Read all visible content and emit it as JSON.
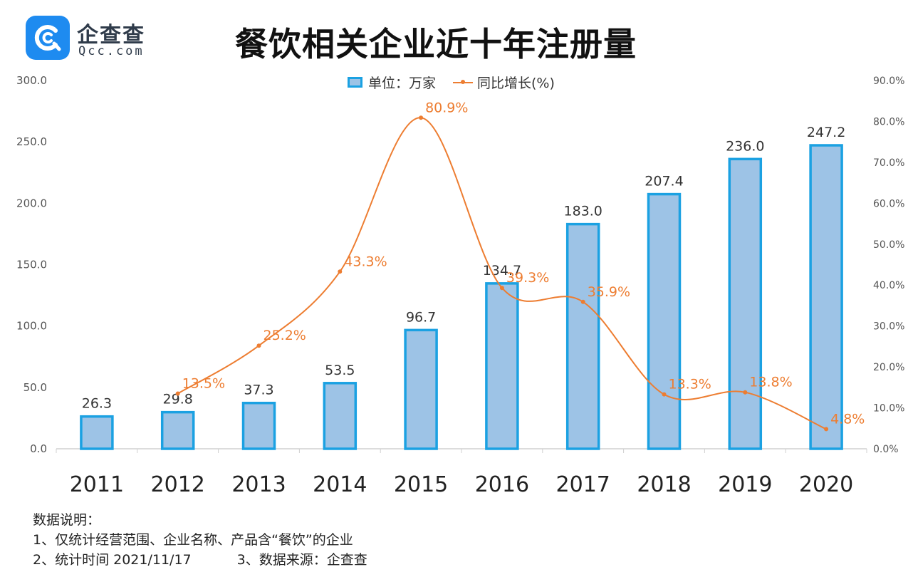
{
  "logo": {
    "name": "企查查",
    "domain": "Qcc.com"
  },
  "colors": {
    "bar_fill": "#9dc3e6",
    "bar_border": "#1ba1e2",
    "line": "#ed7d31",
    "bar_label": "#333333",
    "brand": "#1e8bf0"
  },
  "chart_data": {
    "type": "bar",
    "title": "餐饮相关企业近十年注册量",
    "categories": [
      "2011",
      "2012",
      "2013",
      "2014",
      "2015",
      "2016",
      "2017",
      "2018",
      "2019",
      "2020"
    ],
    "series": [
      {
        "name": "单位：万家",
        "type": "bar",
        "axis": "left",
        "values": [
          26.3,
          29.8,
          37.3,
          53.5,
          96.7,
          134.7,
          183.0,
          207.4,
          236.0,
          247.2
        ],
        "labels": [
          "26.3",
          "29.8",
          "37.3",
          "53.5",
          "96.7",
          "134.7",
          "183.0",
          "207.4",
          "236.0",
          "247.2"
        ]
      },
      {
        "name": "同比增长(%)",
        "type": "line",
        "axis": "right",
        "values": [
          null,
          13.5,
          25.2,
          43.3,
          80.9,
          39.3,
          35.9,
          13.3,
          13.8,
          4.8
        ],
        "labels": [
          null,
          "13.5%",
          "25.2%",
          "43.3%",
          "80.9%",
          "39.3%",
          "35.9%",
          "13.3%",
          "13.8%",
          "4.8%"
        ]
      }
    ],
    "y_left": {
      "range": [
        0,
        300
      ],
      "ticks": [
        "0.0",
        "50.0",
        "100.0",
        "150.0",
        "200.0",
        "250.0",
        "300.0"
      ]
    },
    "y_right": {
      "range": [
        0,
        90
      ],
      "ticks": [
        "0.0%",
        "10.0%",
        "20.0%",
        "30.0%",
        "40.0%",
        "50.0%",
        "60.0%",
        "70.0%",
        "80.0%",
        "90.0%"
      ]
    },
    "grid": false,
    "legend_position": "top-center"
  },
  "notes": {
    "heading": "数据说明：",
    "line1": "1、仅统计经营范围、企业名称、产品含“餐饮”的企业",
    "line2a": "2、统计时间 2021/11/17",
    "line2b": "3、数据来源：企查查"
  }
}
